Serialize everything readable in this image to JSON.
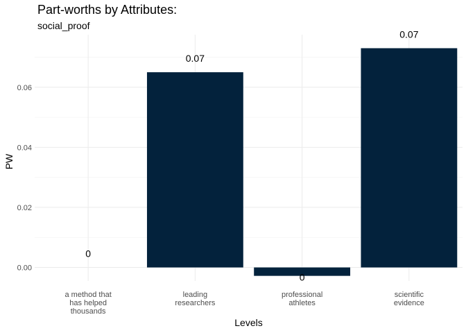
{
  "title": "Part-worths by Attributes:",
  "subtitle": "social_proof",
  "chart_data": {
    "type": "bar",
    "categories": [
      [
        "a method that",
        "has helped",
        "thousands"
      ],
      [
        "leading",
        "researchers"
      ],
      [
        "professional",
        "athletes"
      ],
      [
        "scientific",
        "evidence"
      ]
    ],
    "values": [
      0,
      0.065,
      -0.0028,
      0.073
    ],
    "data_labels": [
      "0",
      "0.07",
      "0",
      "0.07"
    ],
    "xlabel": "Levels",
    "ylabel": "PW",
    "ylim": [
      -0.0045,
      0.0775
    ],
    "yticks": [
      0,
      0.02,
      0.04,
      0.06
    ],
    "ytick_labels": [
      "0.00",
      "0.02",
      "0.04",
      "0.06"
    ],
    "grid": true,
    "bar_color": "#03223c"
  }
}
